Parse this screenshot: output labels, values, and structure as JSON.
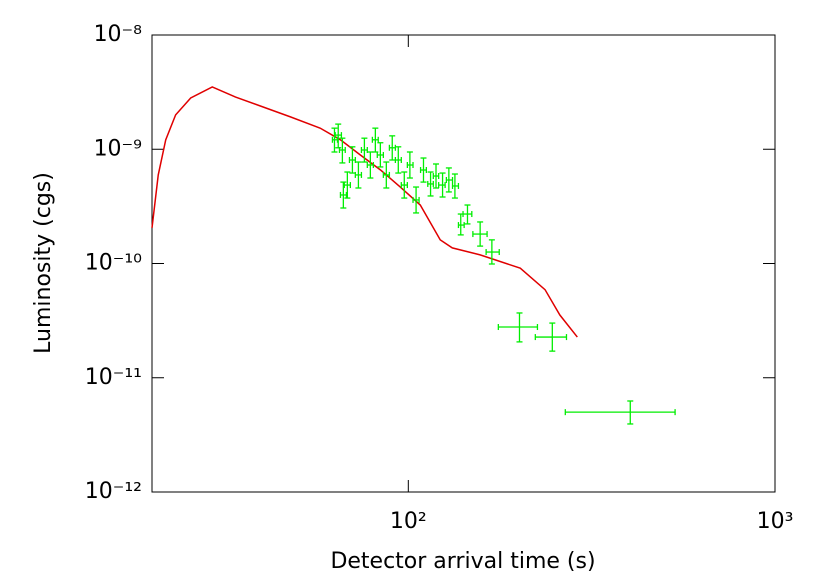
{
  "chart_data": {
    "type": "line",
    "xlabel": "Detector arrival time (s)",
    "ylabel": "Luminosity (cgs)",
    "xlog": true,
    "ylog": true,
    "xlim": [
      20,
      1000
    ],
    "ylim": [
      1e-12,
      1e-08
    ],
    "xticks": [
      {
        "value": 100,
        "label": "10²"
      },
      {
        "value": 1000,
        "label": "10³"
      }
    ],
    "yticks": [
      {
        "value": 1e-12,
        "label": "10⁻¹²"
      },
      {
        "value": 1e-11,
        "label": "10⁻¹¹"
      },
      {
        "value": 1e-10,
        "label": "10⁻¹⁰"
      },
      {
        "value": 1e-09,
        "label": "10⁻⁹"
      },
      {
        "value": 1e-08,
        "label": "10⁻⁸"
      }
    ],
    "series": [
      {
        "kind": "line",
        "color": "#e00000",
        "x": [
          20,
          20.8,
          21.8,
          23.2,
          25.5,
          29.2,
          33.8,
          39.5,
          47.7,
          57.5,
          65.3,
          74.0,
          83.9,
          95.1,
          107.8,
          122.2,
          131.8,
          157,
          202,
          236,
          259,
          289
        ],
        "values": [
          2.05e-10,
          5.96e-10,
          1.21e-09,
          2e-09,
          2.81e-09,
          3.51e-09,
          2.86e-09,
          2.39e-09,
          1.92e-09,
          1.53e-09,
          1.21e-09,
          8.9e-10,
          6.6e-10,
          4.67e-10,
          3.25e-10,
          1.61e-10,
          1.37e-10,
          1.19e-10,
          9.1e-11,
          5.9e-11,
          3.54e-11,
          2.27e-11
        ]
      },
      {
        "kind": "errorbar",
        "color": "#00ee00",
        "x": [
          403,
          247,
          201,
          169,
          157,
          145,
          139,
          134,
          129,
          124,
          119,
          115,
          110,
          105,
          101,
          97.5,
          93.9,
          90.4,
          87.1,
          83.9,
          81.3,
          78.8,
          75.9,
          73.1,
          70.4,
          68.2,
          66.1,
          64.4,
          66.5,
          62.9
        ],
        "values": [
          5e-12,
          2.27e-11,
          2.78e-11,
          1.26e-10,
          1.81e-10,
          2.71e-10,
          2.17e-10,
          4.77e-10,
          5.38e-10,
          4.86e-10,
          5.83e-10,
          4.97e-10,
          6.58e-10,
          3.6e-10,
          7.28e-10,
          4.86e-10,
          8.05e-10,
          1.03e-09,
          5.96e-10,
          8.91e-10,
          1.21e-09,
          7.28e-10,
          9.85e-10,
          5.96e-10,
          8.05e-10,
          4.86e-10,
          9.85e-10,
          1.33e-09,
          3.98e-10,
          1.21e-09
        ],
        "x_low": [
          268,
          222,
          176,
          163,
          150,
          141,
          137,
          132,
          127,
          121,
          117,
          113,
          108,
          103,
          99.4,
          95.7,
          92.2,
          88.8,
          85.5,
          82.3,
          79.8,
          77.3,
          74.5,
          71.7,
          69.1,
          66.9,
          64.9,
          63.2,
          65.3,
          62.1
        ],
        "x_high": [
          534,
          270,
          225,
          177,
          164,
          149,
          142,
          137,
          132,
          126,
          121,
          117,
          112,
          107,
          103,
          99.4,
          95.7,
          92.2,
          88.8,
          85.5,
          82.8,
          80.3,
          77.3,
          74.5,
          71.7,
          69.5,
          67.3,
          65.7,
          67.8,
          64.1
        ],
        "y_low": [
          3.94e-12,
          1.71e-11,
          2.06e-11,
          9.9e-11,
          1.42e-10,
          2.22e-10,
          1.78e-10,
          3.74e-10,
          4.23e-10,
          3.82e-10,
          4.58e-10,
          3.9e-10,
          5.16e-10,
          2.77e-10,
          5.6e-10,
          3.74e-10,
          6.19e-10,
          8.05e-10,
          4.58e-10,
          7e-10,
          9.46e-10,
          5.6e-10,
          7.73e-10,
          4.58e-10,
          6.19e-10,
          3.74e-10,
          7.59e-10,
          1.03e-09,
          3.06e-10,
          9.46e-10
        ],
        "y_high": [
          6.26e-12,
          3.01e-11,
          3.69e-11,
          1.61e-10,
          2.31e-10,
          3.25e-10,
          2.71e-10,
          6.07e-10,
          6.86e-10,
          6.19e-10,
          7.43e-10,
          6.32e-10,
          8.38e-10,
          4.67e-10,
          9.46e-10,
          6.32e-10,
          1.05e-09,
          1.31e-09,
          7.73e-10,
          1.14e-09,
          1.53e-09,
          9.46e-10,
          1.25e-09,
          7.73e-10,
          1.05e-09,
          6.32e-10,
          1.25e-09,
          1.66e-09,
          5.16e-10,
          1.53e-09
        ]
      }
    ]
  }
}
